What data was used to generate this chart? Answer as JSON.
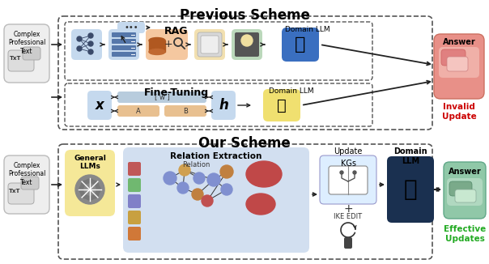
{
  "title_top": "Previous Scheme",
  "title_bottom": "Our Scheme",
  "rag_label": "RAG",
  "ft_label": "Fine-Tuning",
  "domain_llm_rag": "Domain LLM",
  "domain_llm_ft": "Domain LLM",
  "domain_llm_bottom": "Domain\nLLM",
  "answer_top": "Answer",
  "answer_bottom": "Answer",
  "invalid_update": "Invalid\nUpdate",
  "effective_updates": "Effective\nUpdates",
  "complex_text_top": "Complex\nProfessional\nText",
  "complex_text_bottom": "Complex\nProfessional\nText",
  "general_llms": "General\nLLMs",
  "relation_extraction": "Relation Extraction",
  "relation_label": "Relation",
  "update_label": "Update",
  "kgs_label": "KGs",
  "ike_edit_label": "IKE EDIT",
  "x_label": "x",
  "h_label": "h",
  "w_label": "[ w ]",
  "a_label": "A",
  "b_label": "B",
  "bg_color": "#ffffff",
  "invalid_color": "#cc0000",
  "effective_color": "#22aa22",
  "title_fontsize": 11,
  "label_fontsize": 7,
  "small_fontsize": 6
}
